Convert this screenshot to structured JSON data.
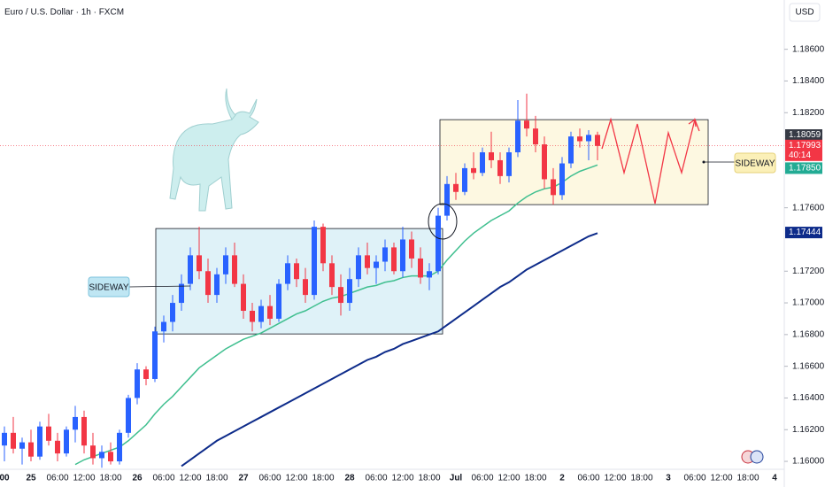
{
  "chart_data": {
    "type": "candlestick",
    "title": "Euro / U.S. Dollar · 1h · FXCM",
    "currency": "USD",
    "up_color": "#2962ff",
    "down_color": "#f23645",
    "ohlc": [
      [
        1.161,
        1.1622,
        1.16,
        1.1618
      ],
      [
        1.1618,
        1.1628,
        1.1605,
        1.1608
      ],
      [
        1.1608,
        1.1615,
        1.1598,
        1.1612
      ],
      [
        1.1612,
        1.162,
        1.16,
        1.1603
      ],
      [
        1.1603,
        1.1625,
        1.1601,
        1.1622
      ],
      [
        1.1622,
        1.163,
        1.161,
        1.1613
      ],
      [
        1.1613,
        1.1618,
        1.16,
        1.1605
      ],
      [
        1.1605,
        1.1622,
        1.1603,
        1.162
      ],
      [
        1.162,
        1.1635,
        1.1612,
        1.1628
      ],
      [
        1.1628,
        1.1632,
        1.1605,
        1.161
      ],
      [
        1.161,
        1.1618,
        1.1598,
        1.1602
      ],
      [
        1.1602,
        1.161,
        1.1596,
        1.1606
      ],
      [
        1.1606,
        1.1612,
        1.1598,
        1.16
      ],
      [
        1.16,
        1.162,
        1.1598,
        1.1618
      ],
      [
        1.1618,
        1.1642,
        1.1615,
        1.164
      ],
      [
        1.164,
        1.1662,
        1.1636,
        1.1658
      ],
      [
        1.1658,
        1.166,
        1.1648,
        1.1652
      ],
      [
        1.1652,
        1.1685,
        1.165,
        1.1682
      ],
      [
        1.1682,
        1.1692,
        1.1675,
        1.1688
      ],
      [
        1.1688,
        1.1705,
        1.1682,
        1.17
      ],
      [
        1.17,
        1.1718,
        1.1695,
        1.1712
      ],
      [
        1.1712,
        1.1735,
        1.1708,
        1.173
      ],
      [
        1.173,
        1.1748,
        1.1715,
        1.172
      ],
      [
        1.172,
        1.1728,
        1.17,
        1.1705
      ],
      [
        1.1705,
        1.1722,
        1.17,
        1.1718
      ],
      [
        1.1718,
        1.1735,
        1.1712,
        1.173
      ],
      [
        1.173,
        1.1738,
        1.171,
        1.1712
      ],
      [
        1.1712,
        1.1718,
        1.169,
        1.1695
      ],
      [
        1.1695,
        1.17,
        1.1682,
        1.1688
      ],
      [
        1.1688,
        1.1702,
        1.1684,
        1.1698
      ],
      [
        1.1698,
        1.1705,
        1.1686,
        1.169
      ],
      [
        1.169,
        1.1715,
        1.1688,
        1.1712
      ],
      [
        1.1712,
        1.173,
        1.1708,
        1.1725
      ],
      [
        1.1725,
        1.1728,
        1.171,
        1.1715
      ],
      [
        1.1715,
        1.1722,
        1.17,
        1.1705
      ],
      [
        1.1705,
        1.1752,
        1.1702,
        1.1748
      ],
      [
        1.1748,
        1.175,
        1.172,
        1.1725
      ],
      [
        1.1725,
        1.173,
        1.1705,
        1.171
      ],
      [
        1.171,
        1.1718,
        1.1692,
        1.17
      ],
      [
        1.17,
        1.1722,
        1.1695,
        1.1715
      ],
      [
        1.1715,
        1.1735,
        1.171,
        1.173
      ],
      [
        1.173,
        1.1738,
        1.1718,
        1.1722
      ],
      [
        1.1722,
        1.173,
        1.1712,
        1.1726
      ],
      [
        1.1726,
        1.174,
        1.172,
        1.1735
      ],
      [
        1.1735,
        1.1738,
        1.1718,
        1.172
      ],
      [
        1.172,
        1.1748,
        1.1716,
        1.174
      ],
      [
        1.174,
        1.1745,
        1.1722,
        1.1728
      ],
      [
        1.1728,
        1.1735,
        1.1712,
        1.1716
      ],
      [
        1.1716,
        1.1725,
        1.1708,
        1.172
      ],
      [
        1.172,
        1.176,
        1.1718,
        1.1755
      ],
      [
        1.1755,
        1.178,
        1.1752,
        1.1775
      ],
      [
        1.1775,
        1.1782,
        1.1765,
        1.177
      ],
      [
        1.177,
        1.1788,
        1.1768,
        1.1785
      ],
      [
        1.1785,
        1.1795,
        1.1778,
        1.1782
      ],
      [
        1.1782,
        1.1798,
        1.178,
        1.1795
      ],
      [
        1.1795,
        1.1808,
        1.1785,
        1.179
      ],
      [
        1.179,
        1.1795,
        1.1775,
        1.178
      ],
      [
        1.178,
        1.1798,
        1.1776,
        1.1795
      ],
      [
        1.1795,
        1.1828,
        1.1792,
        1.1815
      ],
      [
        1.1815,
        1.1832,
        1.1805,
        1.181
      ],
      [
        1.181,
        1.1818,
        1.1795,
        1.18
      ],
      [
        1.18,
        1.1805,
        1.1772,
        1.1778
      ],
      [
        1.1778,
        1.1785,
        1.1762,
        1.1768
      ],
      [
        1.1768,
        1.1792,
        1.1765,
        1.1788
      ],
      [
        1.1788,
        1.1808,
        1.1785,
        1.1805
      ],
      [
        1.1805,
        1.181,
        1.1798,
        1.1802
      ],
      [
        1.1802,
        1.1809,
        1.179,
        1.1806
      ],
      [
        1.1806,
        1.1808,
        1.179,
        1.1799
      ]
    ],
    "lines": [
      {
        "color": "#3fbf8f",
        "values": [
          null,
          null,
          null,
          null,
          null,
          null,
          null,
          null,
          1.1598,
          1.1601,
          1.1603,
          1.1605,
          1.1607,
          1.1609,
          1.1613,
          1.1618,
          1.1623,
          1.163,
          1.1636,
          1.1641,
          1.1647,
          1.1653,
          1.1659,
          1.1663,
          1.1667,
          1.1671,
          1.1674,
          1.1677,
          1.1679,
          1.1681,
          1.1684,
          1.1687,
          1.169,
          1.1693,
          1.1695,
          1.1698,
          1.1701,
          1.1703,
          1.1704,
          1.1706,
          1.1708,
          1.171,
          1.1711,
          1.1713,
          1.1714,
          1.1716,
          1.1717,
          1.1717,
          1.1717,
          1.172,
          1.1727,
          1.1733,
          1.1739,
          1.1744,
          1.1748,
          1.1752,
          1.1755,
          1.1758,
          1.1763,
          1.1767,
          1.177,
          1.1772,
          1.1773,
          1.1776,
          1.178,
          1.1783,
          1.1785,
          1.1787
        ]
      },
      {
        "color": "#0d2b8a",
        "values": [
          null,
          null,
          null,
          null,
          null,
          null,
          null,
          null,
          null,
          null,
          null,
          null,
          null,
          null,
          null,
          null,
          null,
          null,
          null,
          null,
          1.1597,
          1.1601,
          1.1605,
          1.1609,
          1.1613,
          1.1616,
          1.1619,
          1.1622,
          1.1625,
          1.1628,
          1.1631,
          1.1634,
          1.1637,
          1.164,
          1.1643,
          1.1646,
          1.1649,
          1.1652,
          1.1655,
          1.1658,
          1.1661,
          1.1664,
          1.1666,
          1.1669,
          1.1671,
          1.1674,
          1.1676,
          1.1678,
          1.168,
          1.1682,
          1.1686,
          1.169,
          1.1694,
          1.1698,
          1.1702,
          1.1706,
          1.171,
          1.1713,
          1.1717,
          1.1721,
          1.1724,
          1.1727,
          1.173,
          1.1733,
          1.1736,
          1.1739,
          1.1742,
          1.1744
        ]
      }
    ],
    "ylim": [
      1.1595,
      1.18911
    ],
    "yticks": [
      {
        "value": 1.16,
        "label": "1.16000"
      },
      {
        "value": 1.162,
        "label": "1.16200"
      },
      {
        "value": 1.164,
        "label": "1.16400"
      },
      {
        "value": 1.166,
        "label": "1.16600"
      },
      {
        "value": 1.168,
        "label": "1.16800"
      },
      {
        "value": 1.17,
        "label": "1.17000"
      },
      {
        "value": 1.172,
        "label": "1.17200"
      },
      {
        "value": 1.176,
        "label": "1.17600"
      },
      {
        "value": 1.182,
        "label": "1.18200"
      },
      {
        "value": 1.184,
        "label": "1.18400"
      },
      {
        "value": 1.186,
        "label": "1.18600"
      }
    ],
    "price_markers": [
      {
        "value": 1.18059,
        "label": "1.18059",
        "color": "#363a45"
      },
      {
        "value": 1.17993,
        "label": "1.17993",
        "color": "#f23645",
        "countdown": "40:14"
      },
      {
        "value": 1.1785,
        "label": "1.17850",
        "color": "#22ab94"
      },
      {
        "value": 1.17444,
        "label": "1.17444",
        "color": "#0d2b8a"
      }
    ],
    "xticks": [
      "00",
      "25",
      "06:00",
      "12:00",
      "18:00",
      "26",
      "06:00",
      "12:00",
      "18:00",
      "27",
      "06:00",
      "12:00",
      "18:00",
      "28",
      "06:00",
      "12:00",
      "18:00",
      "Jul",
      "06:00",
      "12:00",
      "18:00",
      "2",
      "06:00",
      "12:00",
      "18:00",
      "3",
      "06:00",
      "12:00",
      "18:00",
      "4"
    ],
    "zones": [
      {
        "label": "SIDEWAY",
        "range": [
          1.16804,
          1.17469
        ],
        "fill": "#dff2f8"
      },
      {
        "label": "SIDEWAY",
        "range": [
          1.1762,
          1.18156
        ],
        "fill": "#fdf8e1"
      }
    ]
  }
}
